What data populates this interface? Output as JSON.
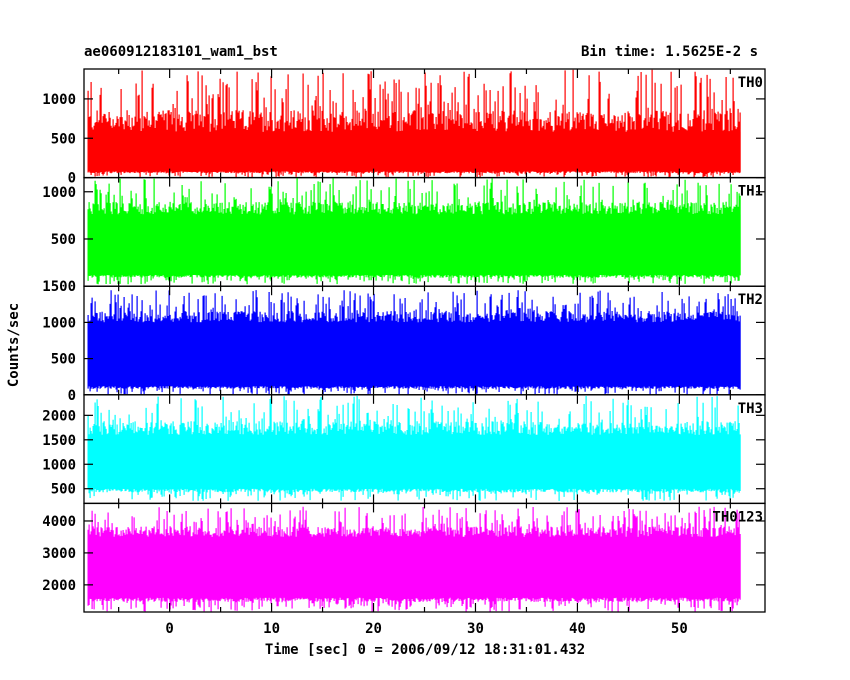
{
  "header": {
    "left": "ae060912183101_wam1_bst",
    "right": "Bin time: 1.5625E-2 s"
  },
  "chart_data": {
    "type": "line",
    "xlabel": "Time [sec] 0 = 2006/09/12 18:31:01.432",
    "ylabel": "Counts/sec",
    "xlim": [
      -8.4,
      58.4
    ],
    "x_ticks": [
      0,
      10,
      20,
      30,
      40,
      50
    ],
    "x_range_data": [
      -8,
      56
    ],
    "grid": false,
    "panels": [
      {
        "name": "TH0",
        "color": "#ff0000",
        "ylim": [
          0,
          1380
        ],
        "y_ticks": [
          0,
          500,
          1000
        ],
        "band_low": 80,
        "band_high": 580,
        "spike_max": 1380,
        "dip_min": 0
      },
      {
        "name": "TH1",
        "color": "#00ff00",
        "ylim": [
          0,
          1150
        ],
        "y_ticks": [
          500,
          1000
        ],
        "band_low": 120,
        "band_high": 760,
        "spike_max": 1150,
        "dip_min": 20
      },
      {
        "name": "TH2",
        "color": "#0000ff",
        "ylim": [
          0,
          1500
        ],
        "y_ticks": [
          0,
          500,
          1000,
          1500
        ],
        "band_low": 120,
        "band_high": 1000,
        "spike_max": 1450,
        "dip_min": 0
      },
      {
        "name": "TH3",
        "color": "#00ffff",
        "ylim": [
          200,
          2420
        ],
        "y_ticks": [
          500,
          1000,
          1500,
          2000
        ],
        "band_low": 500,
        "band_high": 1600,
        "spike_max": 2400,
        "dip_min": 250
      },
      {
        "name": "TH0123",
        "color": "#ff00ff",
        "ylim": [
          1150,
          4550
        ],
        "y_ticks": [
          2000,
          3000,
          4000
        ],
        "band_low": 1600,
        "band_high": 3500,
        "spike_max": 4450,
        "dip_min": 1150
      }
    ]
  }
}
